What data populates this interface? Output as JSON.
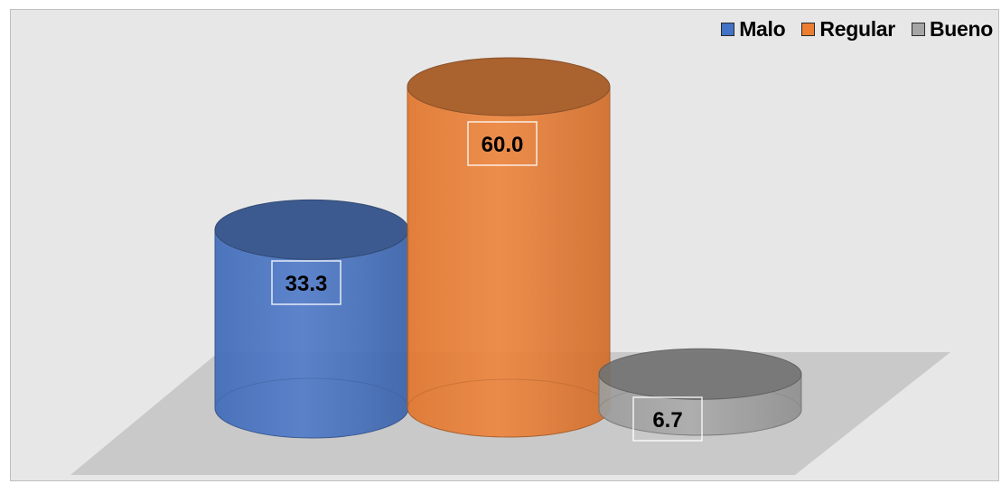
{
  "chart_data": {
    "type": "bar",
    "style": "3d-cylinder",
    "categories": [
      "Malo",
      "Regular",
      "Bueno"
    ],
    "values": [
      33.3,
      60.0,
      6.7
    ],
    "value_labels": [
      "33.3",
      "60.0",
      "6.7"
    ],
    "colors": [
      "#4472c4",
      "#ed7d31",
      "#a5a5a5"
    ],
    "legend": {
      "placement": "top-right",
      "entries": [
        "Malo",
        "Regular",
        "Bueno"
      ]
    },
    "grid": false,
    "axes_visible": false,
    "ylim": [
      0,
      60
    ]
  }
}
